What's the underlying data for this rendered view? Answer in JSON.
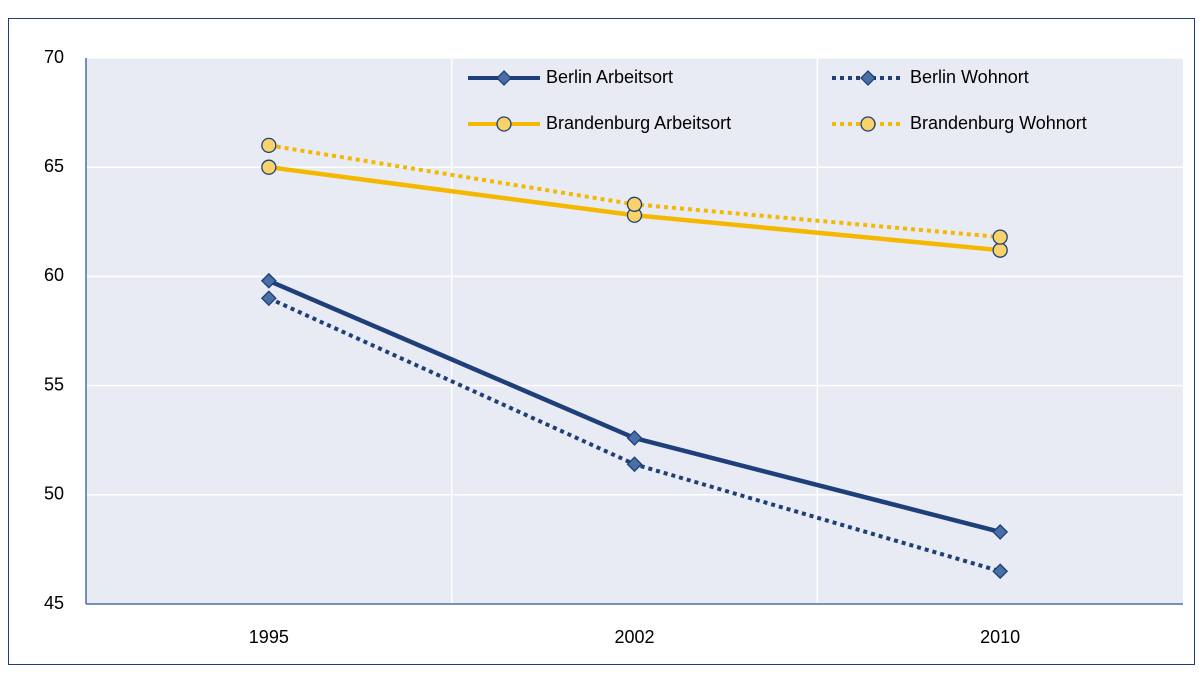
{
  "chart_data": {
    "type": "line",
    "categories": [
      "1995",
      "2002",
      "2010"
    ],
    "series": [
      {
        "name": "Berlin Arbeitsort",
        "color": "#1f3f7a",
        "marker_fill": "#4a6fa5",
        "marker": "diamond",
        "dash": false,
        "values": [
          59.8,
          52.6,
          48.3
        ]
      },
      {
        "name": "Berlin Wohnort",
        "color": "#1f3f7a",
        "marker_fill": "#4a6fa5",
        "marker": "diamond",
        "dash": true,
        "values": [
          59.0,
          51.4,
          46.5
        ]
      },
      {
        "name": "Brandenburg Arbeitsort",
        "color": "#f5b800",
        "marker_fill": "#f9d36a",
        "marker": "circle",
        "dash": false,
        "values": [
          65.0,
          62.8,
          61.2
        ]
      },
      {
        "name": "Brandenburg Wohnort",
        "color": "#f5b800",
        "marker_fill": "#f9d36a",
        "marker": "circle",
        "dash": true,
        "values": [
          66.0,
          63.3,
          61.8
        ]
      }
    ],
    "ylim": [
      45,
      70
    ],
    "yticks": [
      45,
      50,
      55,
      60,
      65,
      70
    ],
    "grid": true,
    "legend": "top"
  }
}
